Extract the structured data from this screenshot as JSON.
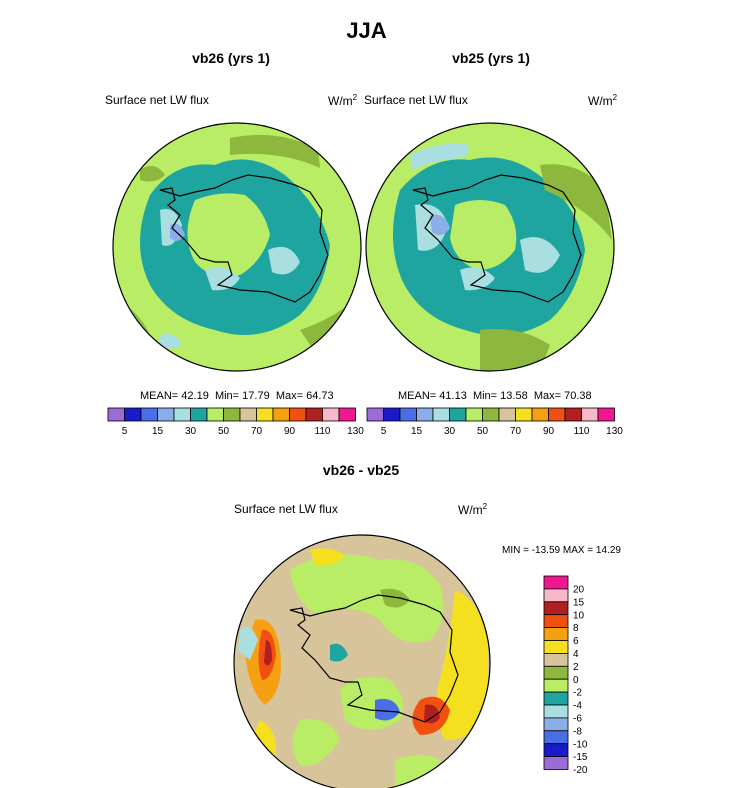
{
  "title": "JJA",
  "panels": [
    {
      "title": "vb26 (yrs 1)",
      "variable": "Surface net LW flux",
      "units_base": "W/m",
      "units_exp": "2",
      "stats": {
        "mean_label": "MEAN=",
        "mean": "42.19",
        "min_label": "Min=",
        "min": "17.79",
        "max_label": "Max=",
        "max": "64.73"
      }
    },
    {
      "title": "vb25 (yrs 1)",
      "variable": "Surface net LW flux",
      "units_base": "W/m",
      "units_exp": "2",
      "stats": {
        "mean_label": "MEAN=",
        "mean": "41.13",
        "min_label": "Min=",
        "min": "13.58",
        "max_label": "Max=",
        "max": "70.38"
      }
    }
  ],
  "diff_panel": {
    "title": "vb26 - vb25",
    "variable": "Surface net LW flux",
    "units_base": "W/m",
    "units_exp": "2",
    "minmax": "MIN = -13.59 MAX =  14.29"
  },
  "colorbar_h": {
    "labels": [
      "5",
      "15",
      "30",
      "50",
      "70",
      "90",
      "110",
      "130"
    ],
    "colors": [
      "#9b6bd6",
      "#1a1acb",
      "#4a6ee6",
      "#8caee8",
      "#a9dfe0",
      "#1fa5a0",
      "#b8ed65",
      "#8db83d",
      "#d8c49a",
      "#f5e020",
      "#f5a010",
      "#f05010",
      "#b02020",
      "#f7b8c8",
      "#f01890"
    ]
  },
  "colorbar_v": {
    "labels": [
      "20",
      "15",
      "10",
      "8",
      "6",
      "4",
      "2",
      "0",
      "-2",
      "-4",
      "-6",
      "-8",
      "-10",
      "-15",
      "-20"
    ],
    "colors": [
      "#f01890",
      "#f7b8c8",
      "#b02020",
      "#f05010",
      "#f5a010",
      "#f5e020",
      "#d8c49a",
      "#8db83d",
      "#b8ed65",
      "#1fa5a0",
      "#a9dfe0",
      "#8caee8",
      "#4a6ee6",
      "#1a1acb",
      "#9b6bd6"
    ]
  },
  "chart_data": [
    {
      "type": "heatmap",
      "title": "vb26 (yrs 1)",
      "field": "Surface net LW flux",
      "units": "W/m2",
      "projection": "south polar stereographic",
      "mean": 42.19,
      "min": 17.79,
      "max": 64.73,
      "levels": [
        5,
        10,
        15,
        20,
        30,
        40,
        50,
        60,
        70,
        80,
        90,
        100,
        110,
        120,
        130
      ]
    },
    {
      "type": "heatmap",
      "title": "vb25 (yrs 1)",
      "field": "Surface net LW flux",
      "units": "W/m2",
      "projection": "south polar stereographic",
      "mean": 41.13,
      "min": 13.58,
      "max": 70.38,
      "levels": [
        5,
        10,
        15,
        20,
        30,
        40,
        50,
        60,
        70,
        80,
        90,
        100,
        110,
        120,
        130
      ]
    },
    {
      "type": "heatmap",
      "title": "vb26 - vb25",
      "field": "Surface net LW flux",
      "units": "W/m2",
      "projection": "south polar stereographic",
      "min": -13.59,
      "max": 14.29,
      "levels": [
        -20,
        -15,
        -10,
        -8,
        -6,
        -4,
        -2,
        0,
        2,
        4,
        6,
        8,
        10,
        15,
        20
      ]
    }
  ]
}
